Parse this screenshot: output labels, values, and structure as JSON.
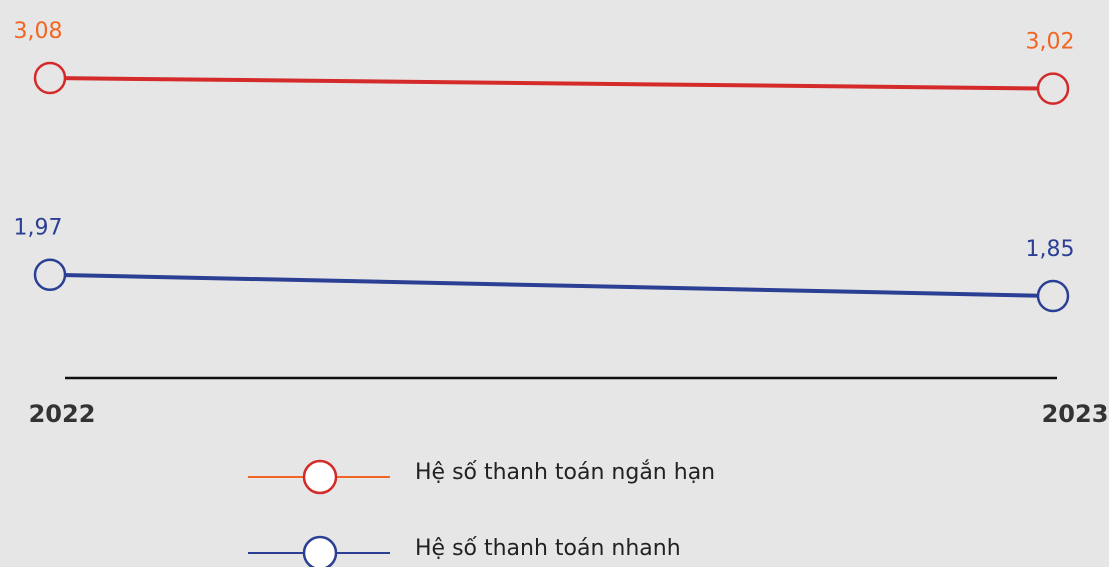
{
  "chart_data": {
    "type": "line",
    "categories": [
      "2022",
      "2023"
    ],
    "series": [
      {
        "name": "Hệ số thanh toán ngắn hạn",
        "color": "#d42a2a",
        "label_color": "#f26522",
        "values": [
          3.08,
          3.02
        ],
        "value_labels": [
          "3,08",
          "3,02"
        ]
      },
      {
        "name": "Hệ số thanh toán nhanh",
        "color": "#2b3f94",
        "label_color": "#2b3f94",
        "values": [
          1.97,
          1.85
        ],
        "value_labels": [
          "1,97",
          "1,85"
        ]
      }
    ]
  }
}
